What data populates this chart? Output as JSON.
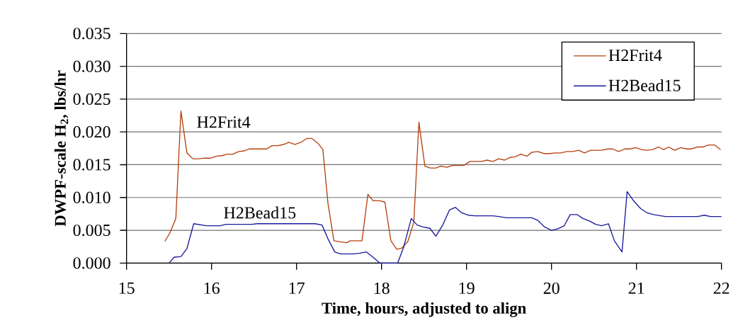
{
  "chart_data": {
    "type": "line",
    "xlabel": "Time, hours, adjusted to align",
    "ylabel": "DWPF-scale H$_{2}$, lbs/hr",
    "xlim": [
      15,
      22
    ],
    "ylim": [
      0,
      0.035
    ],
    "xticks": [
      15,
      16,
      17,
      18,
      19,
      20,
      21,
      22
    ],
    "yticks": [
      {
        "value": 0,
        "label": "0.000"
      },
      {
        "value": 0.005,
        "label": "0.005"
      },
      {
        "value": 0.01,
        "label": "0.010"
      },
      {
        "value": 0.015,
        "label": "0.015"
      },
      {
        "value": 0.02,
        "label": "0.020"
      },
      {
        "value": 0.025,
        "label": "0.025"
      },
      {
        "value": 0.03,
        "label": "0.030"
      },
      {
        "value": 0.035,
        "label": "0.035"
      }
    ],
    "grid": "y",
    "legend": "top right",
    "marker": "none",
    "line_style": "solid",
    "annotations": [
      "H2Frit4",
      "H2Bead15"
    ],
    "series": [
      {
        "name": "H2Frit4",
        "color": "#b5400f",
        "x": [
          15.45,
          15.51,
          15.58,
          15.64,
          15.71,
          15.78,
          15.85,
          15.92,
          15.99,
          16.06,
          16.13,
          16.18,
          16.25,
          16.32,
          16.38,
          16.44,
          16.65,
          16.71,
          16.78,
          16.85,
          16.91,
          16.98,
          17.05,
          17.12,
          17.18,
          17.25,
          17.31,
          17.37,
          17.44,
          17.59,
          17.63,
          17.77,
          17.84,
          17.9,
          17.98,
          18.04,
          18.11,
          18.18,
          18.24,
          18.31,
          18.38,
          18.44,
          18.51,
          18.57,
          18.64,
          18.7,
          18.77,
          18.84,
          18.97,
          19.04,
          19.18,
          19.24,
          19.31,
          19.38,
          19.45,
          19.51,
          19.57,
          19.64,
          19.71,
          19.77,
          19.84,
          19.91,
          19.98,
          20.04,
          20.11,
          20.18,
          20.25,
          20.32,
          20.39,
          20.46,
          20.59,
          20.66,
          20.72,
          20.79,
          20.86,
          20.92,
          20.99,
          21.06,
          21.12,
          21.19,
          21.26,
          21.32,
          21.38,
          21.45,
          21.52,
          21.59,
          21.64,
          21.72,
          21.78,
          21.85,
          21.92,
          21.99
        ],
        "values": [
          0.0033,
          0.0046,
          0.0068,
          0.0232,
          0.0168,
          0.0159,
          0.0159,
          0.016,
          0.016,
          0.0163,
          0.0164,
          0.0166,
          0.0166,
          0.017,
          0.0171,
          0.0174,
          0.0174,
          0.0179,
          0.0179,
          0.0181,
          0.0184,
          0.0181,
          0.0184,
          0.019,
          0.019,
          0.0183,
          0.0173,
          0.0091,
          0.0034,
          0.0031,
          0.0034,
          0.0034,
          0.0105,
          0.0095,
          0.0095,
          0.0093,
          0.0034,
          0.0021,
          0.0023,
          0.0033,
          0.0062,
          0.0215,
          0.0148,
          0.0145,
          0.0145,
          0.0148,
          0.0146,
          0.0149,
          0.0149,
          0.0155,
          0.0155,
          0.0157,
          0.0155,
          0.0159,
          0.0157,
          0.0161,
          0.0162,
          0.0166,
          0.0163,
          0.0169,
          0.017,
          0.0167,
          0.0167,
          0.0168,
          0.0168,
          0.017,
          0.017,
          0.0172,
          0.0168,
          0.0172,
          0.0172,
          0.0174,
          0.0174,
          0.017,
          0.0174,
          0.0174,
          0.0176,
          0.0173,
          0.0172,
          0.0173,
          0.0177,
          0.0173,
          0.0177,
          0.0172,
          0.0176,
          0.0174,
          0.0174,
          0.0177,
          0.0177,
          0.018,
          0.018,
          0.0173
        ]
      },
      {
        "name": "H2Bead15",
        "color": "#1a1a9c",
        "x": [
          15.5,
          15.56,
          15.64,
          15.71,
          15.79,
          15.94,
          16.1,
          16.17,
          16.47,
          16.54,
          17.22,
          17.3,
          17.37,
          17.45,
          17.52,
          17.67,
          17.74,
          17.82,
          17.89,
          17.98,
          18.19,
          18.26,
          18.35,
          18.42,
          18.49,
          18.57,
          18.64,
          18.72,
          18.8,
          18.87,
          18.94,
          19.02,
          19.1,
          19.31,
          19.38,
          19.47,
          19.77,
          19.84,
          19.92,
          20.0,
          20.07,
          20.15,
          20.22,
          20.3,
          20.37,
          20.45,
          20.52,
          20.59,
          20.67,
          20.74,
          20.83,
          20.89,
          20.96,
          21.05,
          21.12,
          21.2,
          21.34,
          21.72,
          21.8,
          21.87,
          22.0
        ],
        "values": [
          0,
          0.0009,
          0.001,
          0.0022,
          0.006,
          0.0057,
          0.0057,
          0.0059,
          0.0059,
          0.006,
          0.006,
          0.0058,
          0.0037,
          0.0017,
          0.0014,
          0.0014,
          0.0015,
          0.0017,
          0.001,
          0,
          0,
          0.0024,
          0.0068,
          0.0058,
          0.0055,
          0.0053,
          0.0041,
          0.0058,
          0.0081,
          0.0085,
          0.0077,
          0.0073,
          0.0072,
          0.0072,
          0.0071,
          0.0069,
          0.0069,
          0.0065,
          0.0055,
          0.005,
          0.0052,
          0.0057,
          0.0074,
          0.0074,
          0.0068,
          0.0064,
          0.0059,
          0.0057,
          0.006,
          0.0034,
          0.0017,
          0.0109,
          0.0096,
          0.0083,
          0.0077,
          0.0074,
          0.0071,
          0.0071,
          0.0073,
          0.0071,
          0.0071
        ]
      }
    ]
  }
}
